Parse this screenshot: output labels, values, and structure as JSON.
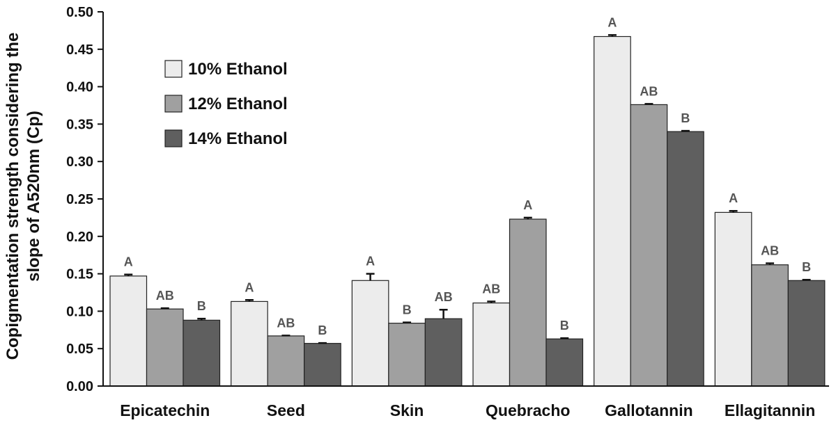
{
  "chart_data": {
    "type": "bar",
    "title": "",
    "xlabel": "",
    "ylabel": [
      "Copigmentation strength considering the",
      "slope of A520nm (Cp)"
    ],
    "ylim": [
      0,
      0.5
    ],
    "yticks": [
      "0.00",
      "0.05",
      "0.10",
      "0.15",
      "0.20",
      "0.25",
      "0.30",
      "0.35",
      "0.40",
      "0.45",
      "0.50"
    ],
    "tick_step": 0.05,
    "grid": false,
    "legend_position": "top-left",
    "categories": [
      "Epicatechin",
      "Seed",
      "Skin",
      "Quebracho",
      "Gallotannin",
      "Ellagitannin"
    ],
    "series": [
      {
        "name": "10% Ethanol",
        "color": "#ececec",
        "values": [
          0.147,
          0.113,
          0.141,
          0.111,
          0.467,
          0.232
        ],
        "errors": [
          0.002,
          0.002,
          0.009,
          0.002,
          0.002,
          0.002
        ],
        "labels": [
          "A",
          "A",
          "A",
          "AB",
          "A",
          "A"
        ]
      },
      {
        "name": "12% Ethanol",
        "color": "#a0a0a0",
        "values": [
          0.103,
          0.067,
          0.084,
          0.223,
          0.376,
          0.162
        ],
        "errors": [
          0.001,
          0.0005,
          0.001,
          0.002,
          0.001,
          0.002
        ],
        "labels": [
          "AB",
          "AB",
          "B",
          "A",
          "AB",
          "AB"
        ]
      },
      {
        "name": "14% Ethanol",
        "color": "#5f5f5f",
        "values": [
          0.088,
          0.057,
          0.09,
          0.063,
          0.34,
          0.141
        ],
        "errors": [
          0.002,
          0.0005,
          0.012,
          0.001,
          0.001,
          0.001
        ],
        "labels": [
          "B",
          "B",
          "AB",
          "B",
          "B",
          "B"
        ]
      }
    ]
  }
}
